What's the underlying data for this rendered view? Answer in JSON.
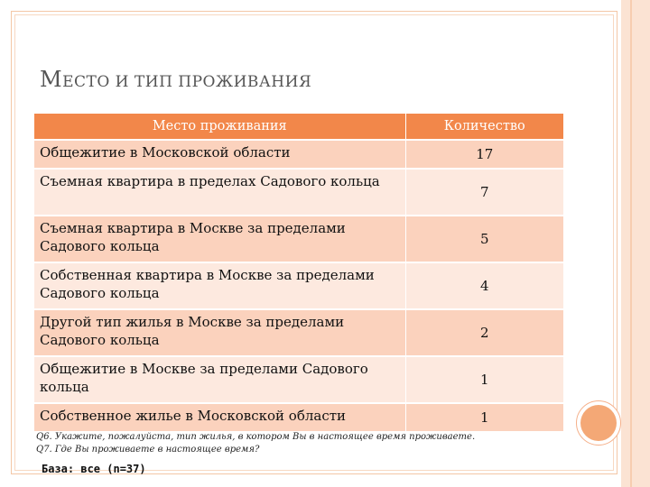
{
  "title": {
    "cap": "М",
    "rest": "ЕСТО И ТИП ПРОЖИВАНИЯ"
  },
  "table": {
    "headers": {
      "place": "Место проживания",
      "quantity": "Количество"
    },
    "rows": [
      {
        "place": "Общежитие в Московской области",
        "quantity": "17"
      },
      {
        "place": "Съемная квартира в пределах Садового кольца",
        "quantity": "7"
      },
      {
        "place": "Съемная квартира в Москве за пределами Садового кольца",
        "quantity": "5"
      },
      {
        "place": "Собственная квартира в Москве за пределами Садового кольца",
        "quantity": "4"
      },
      {
        "place": "Другой тип жилья в Москве за пределами Садового кольца",
        "quantity": "2"
      },
      {
        "place": "Общежитие в Москве за пределами Садового кольца",
        "quantity": "1"
      },
      {
        "place": "Собственное жилье в Московской области",
        "quantity": "1"
      }
    ]
  },
  "notes": {
    "q6": "Q6. Укажите, пожалуйста, тип жилья, в котором Вы в настоящее время проживаете.",
    "q7": "Q7. Где Вы проживаете в настоящее время?"
  },
  "base": "База: все (n=37)",
  "colors": {
    "header_bg": "#f2874a",
    "row_odd": "#fbd2bd",
    "row_even": "#fde9df",
    "accent_circle": "#f4a876"
  }
}
